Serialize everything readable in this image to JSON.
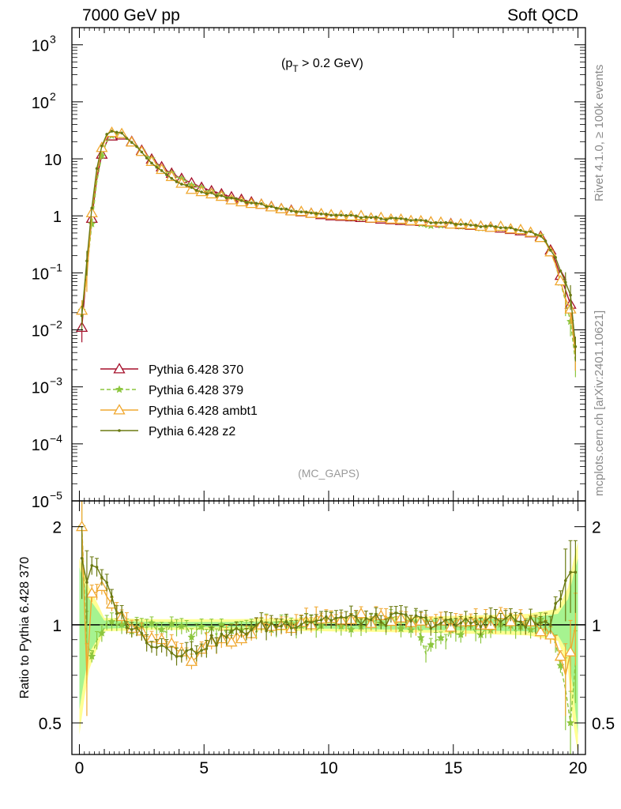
{
  "header": {
    "left": "7000 GeV pp",
    "right": "Soft QCD"
  },
  "side_labels": {
    "rivet": "Rivet 4.1.0, ≥ 100k events",
    "mcplots": "mcplots.cern.ch [arXiv:2401.10621]"
  },
  "chart_data": [
    {
      "type": "line",
      "panel": "main",
      "title": "(p_T > 0.2 GeV)",
      "annotation": "(MC_GAPS)",
      "xlabel": "",
      "ylabel": "",
      "xlim": [
        -0.3,
        20.3
      ],
      "ylim": [
        1e-05,
        2000
      ],
      "yscale": "log",
      "x_ticks": [
        0,
        5,
        10,
        15,
        20
      ],
      "y_tick_labels": [
        {
          "value": 1000,
          "base": "10",
          "exp": "3"
        },
        {
          "value": 100,
          "base": "10",
          "exp": "2"
        },
        {
          "value": 10,
          "base": "10",
          "exp": ""
        },
        {
          "value": 1,
          "base": "1",
          "exp": ""
        },
        {
          "value": 0.1,
          "base": "10",
          "exp": "−1"
        },
        {
          "value": 0.01,
          "base": "10",
          "exp": "−2"
        },
        {
          "value": 0.001,
          "base": "10",
          "exp": "−3"
        },
        {
          "value": 0.0001,
          "base": "10",
          "exp": "−4"
        },
        {
          "value": 1e-05,
          "base": "10",
          "exp": "−5"
        }
      ],
      "legend_position": "lower-left",
      "anchors": {
        "x": [
          0.1,
          0.3,
          0.5,
          0.7,
          0.9,
          1.1,
          1.3,
          1.5,
          1.7,
          2.0,
          2.5,
          3.0,
          3.5,
          4.0,
          5.0,
          6.0,
          7.0,
          8.0,
          9.0,
          10.0,
          11.0,
          12.0,
          13.0,
          14.0,
          15.0,
          16.0,
          17.0,
          18.0,
          18.6,
          18.9,
          19.1,
          19.3,
          19.5,
          19.7,
          19.9
        ],
        "reference_y": [
          0.011,
          0.12,
          0.9,
          4.5,
          12,
          20,
          25,
          27,
          26,
          22,
          14,
          9,
          6.2,
          4.7,
          3.0,
          2.2,
          1.7,
          1.35,
          1.15,
          1.0,
          0.95,
          0.88,
          0.82,
          0.78,
          0.72,
          0.66,
          0.6,
          0.52,
          0.42,
          0.25,
          0.16,
          0.09,
          0.05,
          0.028,
          0.0035
        ]
      },
      "series": [
        {
          "name": "Pythia 6.428 370",
          "color": "#a50f2a",
          "marker": "open-triangle",
          "dash": "solid",
          "ratio_anchor_x": [
            0.1,
            0.4,
            2.0,
            20.0
          ],
          "ratio_anchor_y": [
            1.0,
            1.0,
            1.0,
            1.0
          ]
        },
        {
          "name": "Pythia 6.428 379",
          "color": "#8cc63e",
          "marker": "star",
          "dash": "dashed",
          "ratio_anchor_x": [
            0.1,
            0.25,
            0.5,
            0.8,
            1.2,
            2.0,
            3.0,
            4.0,
            5.0,
            6.0,
            8.0,
            10.0,
            12.0,
            13.5,
            13.9,
            14.3,
            15.0,
            17.0,
            18.5,
            19.0,
            19.4,
            19.7,
            20.0
          ],
          "ratio_anchor_y": [
            2.0,
            0.9,
            0.8,
            0.95,
            1.0,
            1.0,
            0.98,
            0.96,
            0.95,
            0.97,
            0.99,
            1.0,
            1.01,
            1.0,
            0.82,
            0.9,
            0.95,
            0.98,
            1.0,
            0.9,
            0.7,
            0.5,
            0.9
          ]
        },
        {
          "name": "Pythia 6.428 ambt1",
          "color": "#f0a830",
          "marker": "open-triangle",
          "dash": "solid",
          "ratio_anchor_x": [
            0.1,
            0.3,
            0.5,
            0.7,
            1.0,
            1.3,
            1.6,
            2.0,
            2.5,
            3.0,
            4.0,
            4.5,
            5.0,
            6.0,
            7.0,
            8.0,
            9.0,
            10.0,
            11.0,
            12.0,
            13.0,
            14.0,
            15.0,
            16.0,
            17.0,
            18.0,
            18.6,
            19.0,
            19.3,
            19.6,
            19.8
          ],
          "ratio_anchor_y": [
            2.0,
            0.7,
            1.25,
            1.28,
            1.25,
            1.15,
            1.07,
            1.0,
            0.93,
            0.88,
            0.83,
            0.8,
            0.86,
            0.92,
            0.97,
            1.0,
            1.02,
            1.03,
            1.05,
            1.03,
            1.02,
            1.0,
            1.0,
            1.02,
            1.03,
            1.0,
            0.98,
            0.92,
            0.8,
            0.65,
            1.0
          ]
        },
        {
          "name": "Pythia 6.428 z2",
          "color": "#6b7a12",
          "marker": "dot",
          "dash": "solid",
          "ratio_anchor_x": [
            0.1,
            0.3,
            0.5,
            0.7,
            1.0,
            1.3,
            1.6,
            2.0,
            2.5,
            3.0,
            4.0,
            4.5,
            5.0,
            6.0,
            7.0,
            8.0,
            9.0,
            10.0,
            11.0,
            12.0,
            13.0,
            14.0,
            15.0,
            16.0,
            17.0,
            18.0,
            18.8,
            19.3,
            19.6
          ],
          "ratio_anchor_y": [
            1.6,
            1.35,
            1.52,
            1.45,
            1.35,
            1.2,
            1.08,
            1.0,
            0.93,
            0.88,
            0.83,
            0.82,
            0.87,
            0.93,
            0.98,
            1.0,
            1.03,
            1.05,
            1.04,
            1.03,
            1.05,
            1.02,
            1.0,
            1.03,
            1.04,
            1.02,
            1.0,
            1.2,
            1.45
          ]
        }
      ]
    },
    {
      "type": "line",
      "panel": "ratio",
      "ylabel": "Ratio to Pythia 6.428 370",
      "xlim": [
        -0.3,
        20.3
      ],
      "ylim": [
        0.4,
        2.4
      ],
      "yscale": "log",
      "y_ticks": [
        0.5,
        1,
        2
      ],
      "x_ticks": [
        0,
        5,
        10,
        15,
        20
      ],
      "bands": [
        {
          "name": "reference uncertainty",
          "color": "#ffff80",
          "half_width_x": [
            0.0,
            0.4,
            1.0,
            3.0,
            6.0,
            10.0,
            14.0,
            18.0,
            19.2,
            19.6,
            20.0
          ],
          "half_width": [
            0.6,
            0.3,
            0.05,
            0.04,
            0.04,
            0.05,
            0.06,
            0.08,
            0.12,
            0.3,
            0.8
          ]
        },
        {
          "name": "statistical uncertainty",
          "color": "#90f090",
          "half_width_x": [
            0.0,
            0.4,
            1.0,
            3.0,
            6.0,
            10.0,
            14.0,
            18.0,
            19.2,
            19.6,
            20.0
          ],
          "half_width": [
            0.5,
            0.2,
            0.03,
            0.02,
            0.02,
            0.03,
            0.04,
            0.05,
            0.08,
            0.2,
            0.6
          ]
        }
      ]
    }
  ]
}
